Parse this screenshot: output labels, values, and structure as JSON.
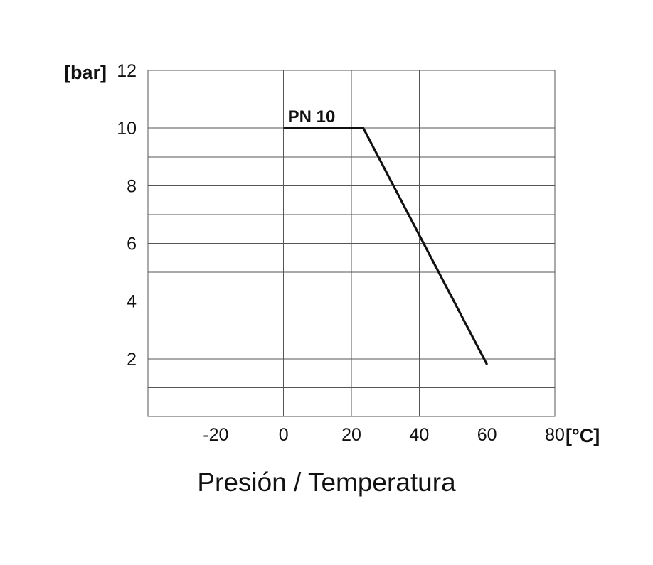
{
  "chart_data": {
    "type": "line",
    "title": "Presión / Temperatura",
    "ylabel": "[bar]",
    "xlabel": "[°C]",
    "xlim": [
      -40,
      80
    ],
    "ylim": [
      0,
      12
    ],
    "x_ticks": [
      -20,
      0,
      20,
      40,
      60,
      80
    ],
    "y_ticks": [
      2,
      4,
      6,
      8,
      10,
      12
    ],
    "x_grid": [
      -20,
      0,
      20,
      40,
      60
    ],
    "y_grid": [
      1,
      2,
      3,
      4,
      5,
      6,
      7,
      8,
      9,
      10,
      11
    ],
    "grid": true,
    "series": [
      {
        "name": "PN 10",
        "x": [
          0,
          23.5,
          60
        ],
        "y": [
          10,
          10,
          1.8
        ]
      }
    ]
  }
}
